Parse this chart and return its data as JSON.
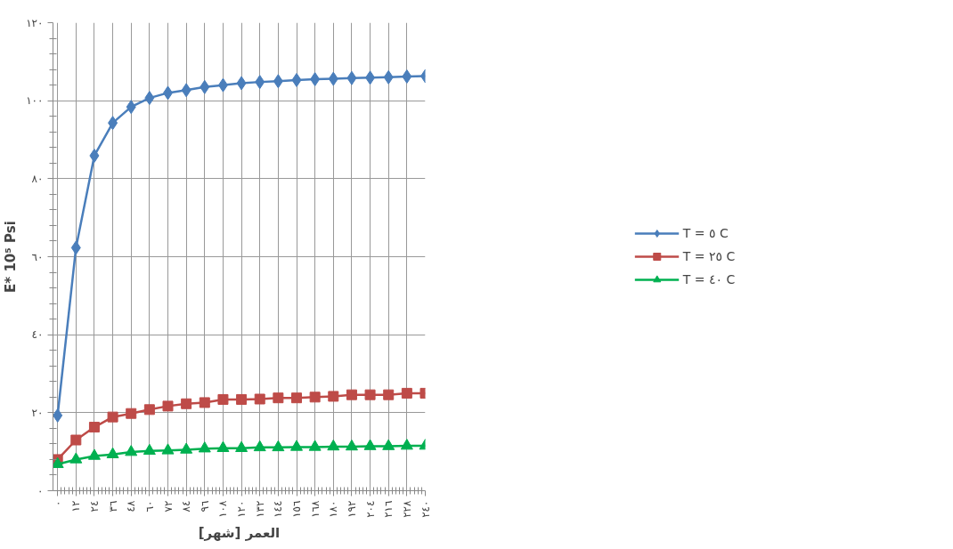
{
  "chart_data": {
    "type": "line",
    "xlabel": "العمر [شهر]",
    "ylabel": "E* 10⁵ Psi",
    "x": [
      0,
      12,
      24,
      36,
      48,
      60,
      72,
      84,
      96,
      108,
      120,
      132,
      144,
      156,
      168,
      180,
      192,
      204,
      216,
      228,
      240
    ],
    "xlim": [
      -3,
      240
    ],
    "xticks": [
      {
        "value": 0,
        "label": "٠"
      },
      {
        "value": 12,
        "label": "١٢"
      },
      {
        "value": 24,
        "label": "٢٤"
      },
      {
        "value": 36,
        "label": "٣٦"
      },
      {
        "value": 48,
        "label": "٤٨"
      },
      {
        "value": 60,
        "label": "٦٠"
      },
      {
        "value": 72,
        "label": "٧٢"
      },
      {
        "value": 84,
        "label": "٨٤"
      },
      {
        "value": 96,
        "label": "٩٦"
      },
      {
        "value": 108,
        "label": "١٠٨"
      },
      {
        "value": 120,
        "label": "١٢٠"
      },
      {
        "value": 132,
        "label": "١٣٢"
      },
      {
        "value": 144,
        "label": "١٤٤"
      },
      {
        "value": 156,
        "label": "١٥٦"
      },
      {
        "value": 168,
        "label": "١٦٨"
      },
      {
        "value": 180,
        "label": "١٨٠"
      },
      {
        "value": 192,
        "label": "١٩٢"
      },
      {
        "value": 204,
        "label": "٢٠٤"
      },
      {
        "value": 216,
        "label": "٢١٦"
      },
      {
        "value": 228,
        "label": "٢٢٨"
      },
      {
        "value": 240,
        "label": "٢٤٠"
      }
    ],
    "ylim": [
      0,
      120
    ],
    "yticks": [
      {
        "value": 0,
        "label": "٠"
      },
      {
        "value": 20,
        "label": "٢٠"
      },
      {
        "value": 40,
        "label": "٤٠"
      },
      {
        "value": 60,
        "label": "٦٠"
      },
      {
        "value": 80,
        "label": "٨٠"
      },
      {
        "value": 100,
        "label": "١٠٠"
      },
      {
        "value": 120,
        "label": "١٢٠"
      }
    ],
    "grid": true,
    "legend": "right",
    "series": [
      {
        "name": "T = ٥ C",
        "color": "#4a7ebb",
        "marker": "diamond",
        "values": [
          19.3,
          62.3,
          85.9,
          94.3,
          98.4,
          100.7,
          102.0,
          102.7,
          103.5,
          104.0,
          104.5,
          104.8,
          105.0,
          105.3,
          105.5,
          105.6,
          105.8,
          105.9,
          106.0,
          106.2,
          106.3
        ]
      },
      {
        "name": "T = ٢٥ C",
        "color": "#be4b48",
        "marker": "square",
        "values": [
          8.0,
          13.0,
          16.3,
          18.9,
          19.8,
          20.8,
          21.7,
          22.3,
          22.6,
          23.4,
          23.4,
          23.5,
          23.8,
          23.8,
          24.0,
          24.2,
          24.6,
          24.6,
          24.6,
          25.0,
          25.0
        ]
      },
      {
        "name": "T = ٤٠ C",
        "color": "#00b050",
        "marker": "triangle",
        "values": [
          6.8,
          8.0,
          8.9,
          9.3,
          9.9,
          10.2,
          10.3,
          10.5,
          10.8,
          10.9,
          10.9,
          11.1,
          11.1,
          11.2,
          11.2,
          11.3,
          11.3,
          11.4,
          11.4,
          11.5,
          11.5
        ]
      }
    ]
  }
}
